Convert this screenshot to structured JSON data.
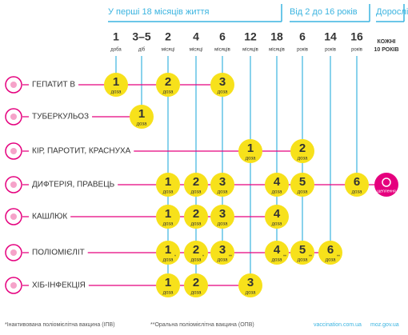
{
  "header": {
    "groups": [
      "У перші 18 місяців життя",
      "Від 2 до 16 років",
      "Дорослі"
    ]
  },
  "columns": [
    {
      "value": "1",
      "unit": "доба"
    },
    {
      "value": "3–5",
      "unit": "діб"
    },
    {
      "value": "2",
      "unit": "місяці"
    },
    {
      "value": "4",
      "unit": "місяці"
    },
    {
      "value": "6",
      "unit": "місяців"
    },
    {
      "value": "12",
      "unit": "місяців"
    },
    {
      "value": "18",
      "unit": "місяців"
    },
    {
      "value": "6",
      "unit": "років"
    },
    {
      "value": "14",
      "unit": "років"
    },
    {
      "value": "16",
      "unit": "років"
    },
    {
      "value": "КОЖНІ",
      "unit": "10 РОКІВ"
    }
  ],
  "rows": [
    {
      "label": "ГЕПАТИТ В",
      "doses": [
        {
          "number": "1",
          "unit": "доза"
        },
        null,
        {
          "number": "2",
          "unit": "доза"
        },
        null,
        {
          "number": "3",
          "unit": "доза"
        },
        null,
        null,
        null,
        null,
        null,
        null
      ]
    },
    {
      "label": "ТУБЕРКУЛЬОЗ",
      "doses": [
        null,
        {
          "number": "1",
          "unit": "доза"
        },
        null,
        null,
        null,
        null,
        null,
        null,
        null,
        null,
        null
      ]
    },
    {
      "label": "КІР, ПАРОТИТ, КРАСНУХА",
      "doses": [
        null,
        null,
        null,
        null,
        null,
        {
          "number": "1",
          "unit": "доза"
        },
        null,
        {
          "number": "2",
          "unit": "доза"
        },
        null,
        null,
        null
      ]
    },
    {
      "label": "ДИФТЕРІЯ, ПРАВЕЦЬ",
      "doses": [
        null,
        null,
        {
          "number": "1",
          "unit": "доза"
        },
        {
          "number": "2",
          "unit": "доза"
        },
        {
          "number": "3",
          "unit": "доза"
        },
        null,
        {
          "number": "4",
          "unit": "доза"
        },
        {
          "number": "5",
          "unit": "доза"
        },
        null,
        {
          "number": "6",
          "unit": "доза"
        },
        {
          "unit": "щеплення"
        }
      ]
    },
    {
      "label": "КАШЛЮК",
      "doses": [
        null,
        null,
        {
          "number": "1",
          "unit": "доза"
        },
        {
          "number": "2",
          "unit": "доза"
        },
        {
          "number": "3",
          "unit": "доза"
        },
        null,
        {
          "number": "4",
          "unit": "доза"
        },
        null,
        null,
        null,
        null
      ]
    },
    {
      "label": "ПОЛІОМІЄЛІТ",
      "doses": [
        null,
        null,
        {
          "number": "1",
          "unit": "доза",
          "note": "*"
        },
        {
          "number": "2",
          "unit": "доза",
          "note": "*"
        },
        {
          "number": "3",
          "unit": "доза",
          "note": "**"
        },
        null,
        {
          "number": "4",
          "unit": "доза",
          "note": "**"
        },
        {
          "number": "5",
          "unit": "доза",
          "note": "**"
        },
        {
          "number": "6",
          "unit": "доза",
          "note": "**"
        },
        null,
        null
      ]
    },
    {
      "label": "ХІБ-ІНФЕКЦІЯ",
      "doses": [
        null,
        null,
        {
          "number": "1",
          "unit": "доза"
        },
        {
          "number": "2",
          "unit": "доза"
        },
        null,
        {
          "number": "3",
          "unit": "доза"
        },
        null,
        null,
        null,
        null,
        null
      ]
    }
  ],
  "footer": {
    "notes": [
      "*Інактивована поліомієлітна вакцина (ІПВ)",
      "**Оральна поліомієлітна вакцина (ОПВ)"
    ],
    "links": [
      "vaccination.com.ua",
      "moz.gov.ua"
    ]
  }
}
